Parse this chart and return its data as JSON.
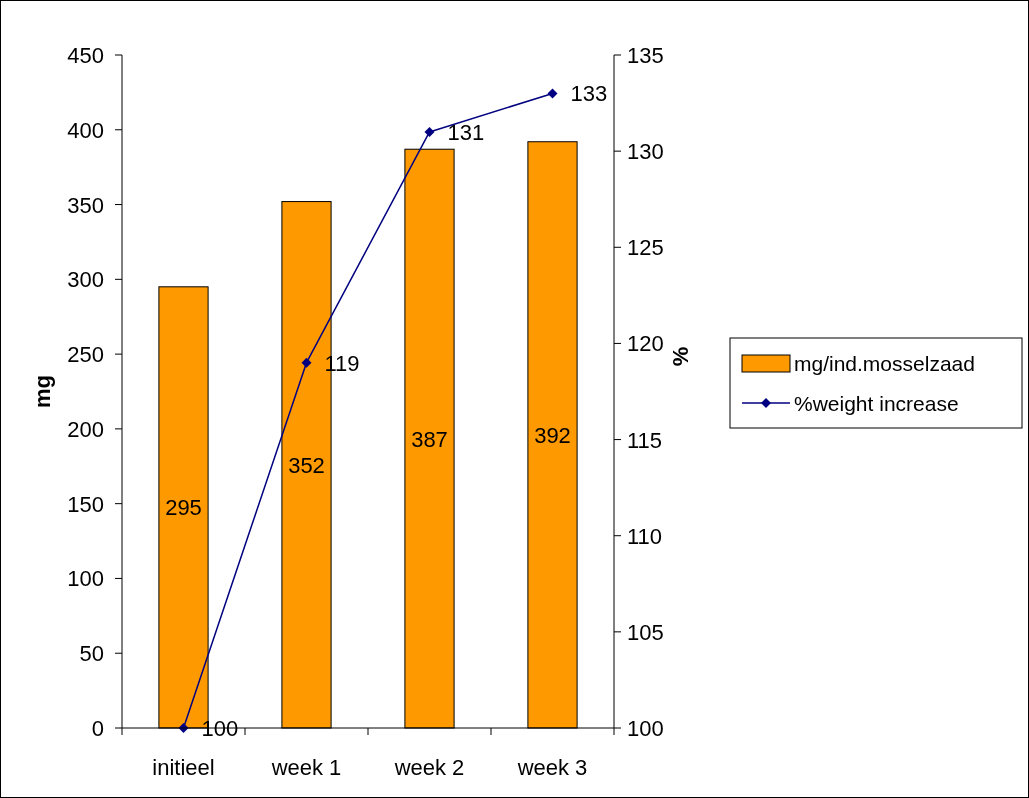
{
  "chart_data": {
    "type": "bar",
    "categories": [
      "initieel",
      "week 1",
      "week 2",
      "week 3"
    ],
    "series": [
      {
        "name": "mg/ind.mosselzaad",
        "color": "#ff9900",
        "values": [
          295,
          352,
          387,
          392
        ]
      },
      {
        "name": "%weight increase",
        "type": "line",
        "axis": "y2",
        "color": "#000080",
        "marker": "diamond",
        "values": [
          100,
          119,
          131,
          133
        ]
      }
    ],
    "ylabel": "mg",
    "y2label": "%",
    "ylim": [
      0,
      450
    ],
    "yticks": [
      0,
      50,
      100,
      150,
      200,
      250,
      300,
      350,
      400,
      450
    ],
    "y2lim": [
      100,
      135
    ],
    "y2ticks": [
      100,
      105,
      110,
      115,
      120,
      125,
      130,
      135
    ],
    "data_labels": true,
    "legend": "right",
    "grid": false
  }
}
